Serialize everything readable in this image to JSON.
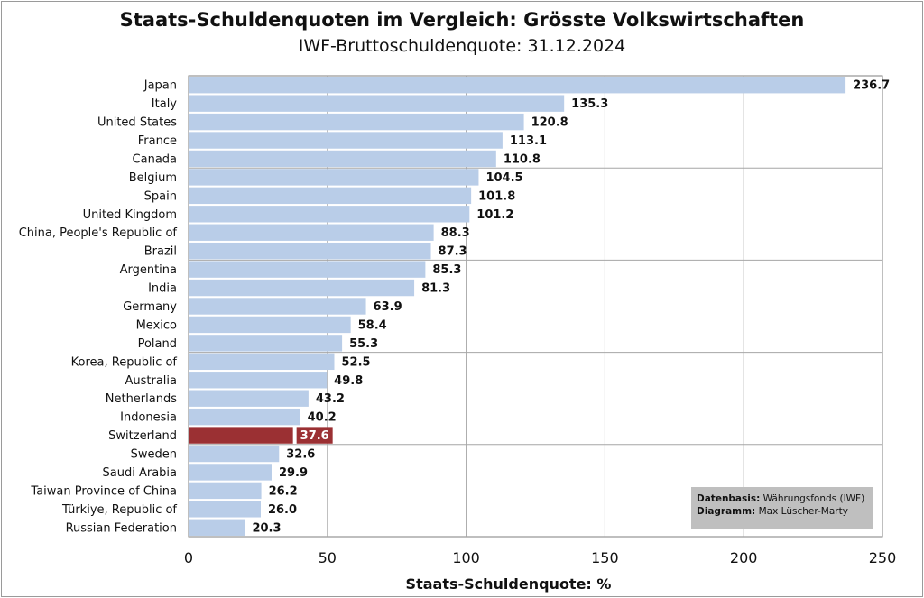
{
  "title": "Staats-Schuldenquoten  im Vergleich: Grösste  Volkswirtschaften",
  "subtitle": "IWF-Bruttoschuldenquote: 31.12.2024",
  "source_box": {
    "data_label": "Datenbasis:",
    "data_value": "Währungsfonds (IWF)",
    "diagram_label": "Diagramm:",
    "diagram_value": "Max Lüscher-Marty"
  },
  "colors": {
    "bar": "#b9cde8",
    "highlight": "#9b3033",
    "grid": "#a6a6a6"
  },
  "chart_data": {
    "type": "bar",
    "orientation": "horizontal",
    "title": "Staats-Schuldenquoten  im Vergleich: Grösste  Volkswirtschaften",
    "subtitle": "IWF-Bruttoschuldenquote: 31.12.2024",
    "xlabel": "Staats-Schuldenquote: %",
    "ylabel": "",
    "xlim": [
      0,
      250
    ],
    "xticks": [
      0,
      50,
      100,
      150,
      200,
      250
    ],
    "grid": true,
    "highlight": "Switzerland",
    "value_labels": [
      "236.7",
      "135.3",
      "120.8",
      "113.1",
      "110.8",
      "104.5",
      "101.8",
      "101.2",
      "88.3",
      "87.3",
      "85.3",
      "81.3",
      "63.9",
      "58.4",
      "55.3",
      "52.5",
      "49.8",
      "43.2",
      "40.2",
      "37.6",
      "32.6",
      "29.9",
      "26.2",
      "26.0",
      "20.3"
    ],
    "categories": [
      "Japan",
      "Italy",
      "United States",
      "France",
      "Canada",
      "Belgium",
      "Spain",
      "United Kingdom",
      "China, People's Republic of",
      "Brazil",
      "Argentina",
      "India",
      "Germany",
      "Mexico",
      "Poland",
      "Korea, Republic of",
      "Australia",
      "Netherlands",
      "Indonesia",
      "Switzerland",
      "Sweden",
      "Saudi Arabia",
      "Taiwan Province of China",
      "Türkiye, Republic of",
      "Russian Federation"
    ],
    "values": [
      236.7,
      135.3,
      120.8,
      113.1,
      110.8,
      104.5,
      101.8,
      101.2,
      88.3,
      87.3,
      85.3,
      81.3,
      63.9,
      58.4,
      55.3,
      52.5,
      49.8,
      43.2,
      40.2,
      37.6,
      32.6,
      29.9,
      26.2,
      26.0,
      20.3
    ]
  }
}
